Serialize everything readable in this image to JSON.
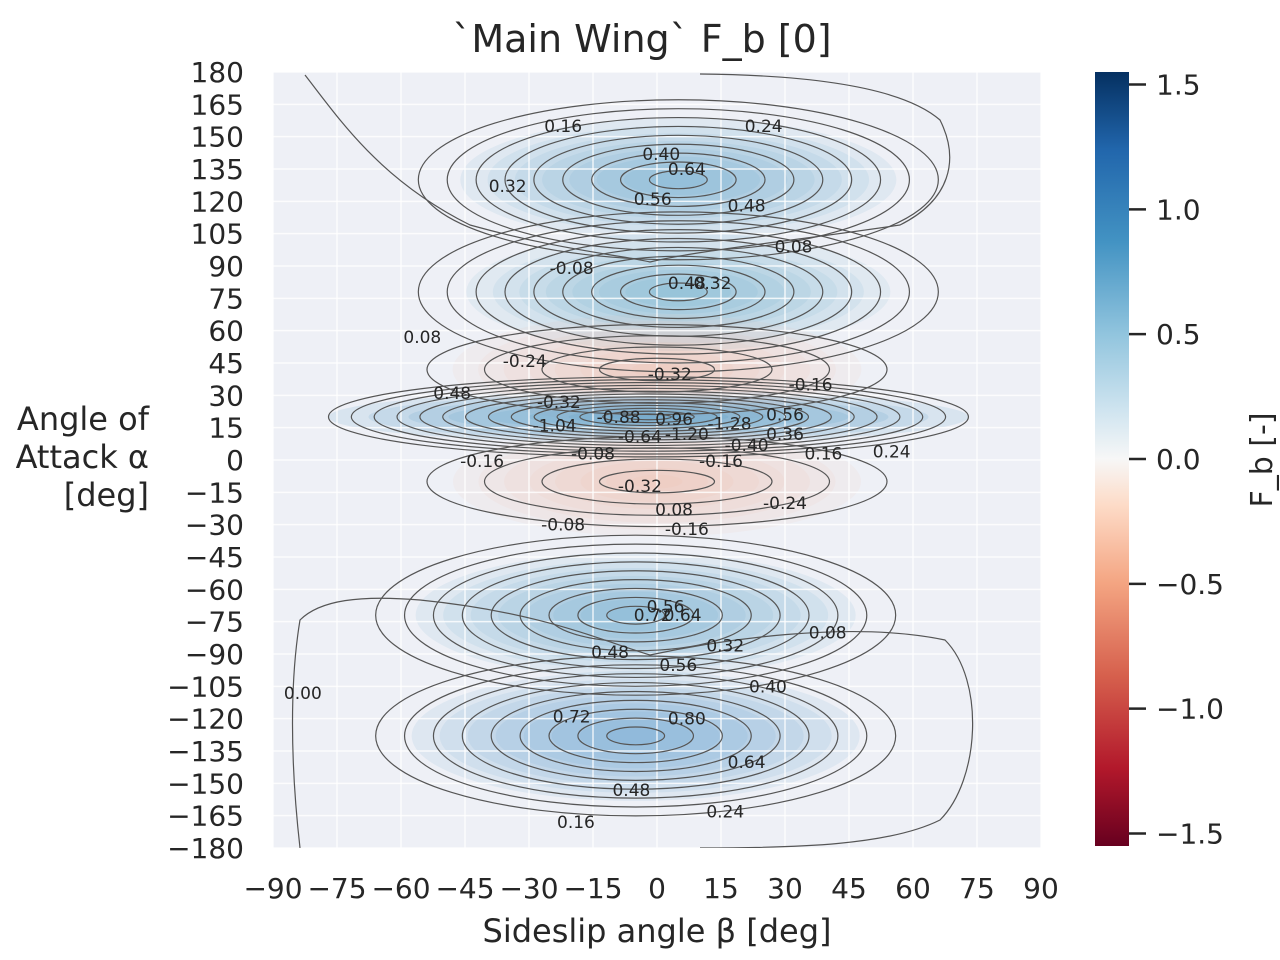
{
  "chart_data": {
    "type": "contour",
    "title": "`Main Wing` F_b [0]",
    "xlabel": "Sideslip angle β [deg]",
    "ylabel_lines": [
      "Angle of",
      "Attack α",
      "[deg]"
    ],
    "xlim": [
      -90,
      90
    ],
    "ylim": [
      -180,
      180
    ],
    "x_ticks": [
      -90,
      -75,
      -60,
      -45,
      -30,
      -15,
      0,
      15,
      30,
      45,
      60,
      75,
      90
    ],
    "y_ticks": [
      180,
      165,
      150,
      135,
      120,
      105,
      90,
      75,
      60,
      45,
      30,
      15,
      0,
      -15,
      -30,
      -45,
      -60,
      -75,
      -90,
      -105,
      -120,
      -135,
      -150,
      -165,
      -180
    ],
    "colorbar": {
      "label": "F_b [-]",
      "colormap": "RdBu",
      "range": [
        -1.55,
        1.55
      ],
      "ticks": [
        1.5,
        1.0,
        0.5,
        0.0,
        -0.5,
        -1.0,
        -1.5
      ],
      "colors": [
        "#67001f",
        "#d6604d",
        "#f4a582",
        "#f7f7f7",
        "#92c5de",
        "#4393c3",
        "#053061"
      ]
    },
    "contour_labels": [
      {
        "text": "0.16",
        "beta": -22,
        "alpha": 155
      },
      {
        "text": "0.24",
        "beta": 25,
        "alpha": 155
      },
      {
        "text": "0.40",
        "beta": 1,
        "alpha": 142
      },
      {
        "text": "0.32",
        "beta": -35,
        "alpha": 127
      },
      {
        "text": "0.64",
        "beta": 7,
        "alpha": 135
      },
      {
        "text": "0.56",
        "beta": -1,
        "alpha": 121
      },
      {
        "text": "0.48",
        "beta": 21,
        "alpha": 118
      },
      {
        "text": "0.08",
        "beta": 32,
        "alpha": 99
      },
      {
        "text": "-0.08",
        "beta": -20,
        "alpha": 89
      },
      {
        "text": "0.48",
        "beta": 7,
        "alpha": 82
      },
      {
        "text": "0.32",
        "beta": 13,
        "alpha": 82
      },
      {
        "text": "0.08",
        "beta": -55,
        "alpha": 57
      },
      {
        "text": "-0.24",
        "beta": -31,
        "alpha": 46
      },
      {
        "text": "-0.32",
        "beta": 3,
        "alpha": 40
      },
      {
        "text": "-0.16",
        "beta": 36,
        "alpha": 35
      },
      {
        "text": "0.48",
        "beta": -48,
        "alpha": 31
      },
      {
        "text": "-0.32",
        "beta": -23,
        "alpha": 27
      },
      {
        "text": "0.56",
        "beta": 30,
        "alpha": 21
      },
      {
        "text": "-0.88",
        "beta": -9,
        "alpha": 20
      },
      {
        "text": "-1.04",
        "beta": -24,
        "alpha": 16
      },
      {
        "text": "-1.28",
        "beta": 17,
        "alpha": 17
      },
      {
        "text": "0.96",
        "beta": 4,
        "alpha": 19
      },
      {
        "text": "-0.64",
        "beta": -4,
        "alpha": 11
      },
      {
        "text": "-1.20",
        "beta": 7,
        "alpha": 12
      },
      {
        "text": "0.36",
        "beta": 30,
        "alpha": 12
      },
      {
        "text": "-0.40",
        "beta": 21,
        "alpha": 7
      },
      {
        "text": "-0.08",
        "beta": -15,
        "alpha": 3
      },
      {
        "text": "-0.16",
        "beta": -41,
        "alpha": -0.5
      },
      {
        "text": "-0.16",
        "beta": 15,
        "alpha": -0.5
      },
      {
        "text": "0.16",
        "beta": 39,
        "alpha": 3
      },
      {
        "text": "0.24",
        "beta": 55,
        "alpha": 4
      },
      {
        "text": "-0.32",
        "beta": -4,
        "alpha": -12
      },
      {
        "text": "-0.24",
        "beta": 30,
        "alpha": -20
      },
      {
        "text": "0.08",
        "beta": 4,
        "alpha": -23
      },
      {
        "text": "-0.08",
        "beta": -22,
        "alpha": -30
      },
      {
        "text": "-0.16",
        "beta": 7,
        "alpha": -32
      },
      {
        "text": "0.56",
        "beta": 2,
        "alpha": -68
      },
      {
        "text": "0.72",
        "beta": -1,
        "alpha": -72
      },
      {
        "text": "0.64",
        "beta": 6,
        "alpha": -72
      },
      {
        "text": "0.08",
        "beta": 40,
        "alpha": -80
      },
      {
        "text": "0.32",
        "beta": 16,
        "alpha": -86
      },
      {
        "text": "0.48",
        "beta": -11,
        "alpha": -89
      },
      {
        "text": "0.56",
        "beta": 5,
        "alpha": -95
      },
      {
        "text": "0.40",
        "beta": 26,
        "alpha": -105
      },
      {
        "text": "0.00",
        "beta": -83,
        "alpha": -108
      },
      {
        "text": "0.72",
        "beta": -20,
        "alpha": -119
      },
      {
        "text": "0.80",
        "beta": 7,
        "alpha": -120
      },
      {
        "text": "0.64",
        "beta": 21,
        "alpha": -140
      },
      {
        "text": "0.48",
        "beta": -6,
        "alpha": -153
      },
      {
        "text": "0.24",
        "beta": 16,
        "alpha": -163
      },
      {
        "text": "0.16",
        "beta": -19,
        "alpha": -168
      }
    ],
    "features": [
      {
        "sign": 1,
        "beta": 5,
        "alpha": 130,
        "amp": 0.7
      },
      {
        "sign": 1,
        "beta": 5,
        "alpha": 78,
        "amp": 0.55
      },
      {
        "sign": -1,
        "beta": 0,
        "alpha": 42,
        "amp": 0.36
      },
      {
        "sign": 1,
        "beta": -2,
        "alpha": 20,
        "amp": 1.5
      },
      {
        "sign": -1,
        "beta": 0,
        "alpha": -10,
        "amp": 0.35
      },
      {
        "sign": 1,
        "beta": -5,
        "alpha": -72,
        "amp": 0.75
      },
      {
        "sign": 1,
        "beta": -5,
        "alpha": -128,
        "amp": 0.85
      }
    ]
  }
}
